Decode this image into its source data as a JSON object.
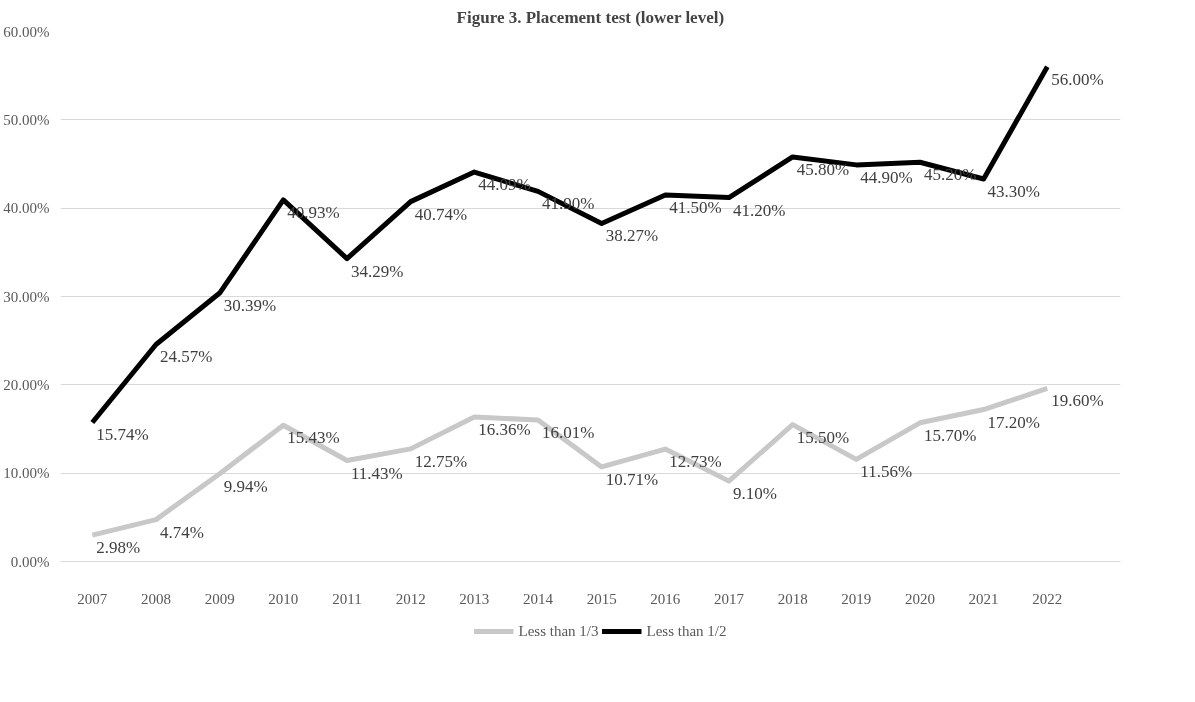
{
  "chart_data": {
    "type": "line",
    "title": "Figure 3. Placement test (lower level)",
    "categories": [
      "2007",
      "2008",
      "2009",
      "2010",
      "2011",
      "2012",
      "2013",
      "2014",
      "2015",
      "2016",
      "2017",
      "2018",
      "2019",
      "2020",
      "2021",
      "2022"
    ],
    "series": [
      {
        "name": "Less than 1/3",
        "color": "#c8c8c8",
        "values": [
          2.98,
          4.74,
          9.94,
          15.43,
          11.43,
          12.75,
          16.36,
          16.01,
          10.71,
          12.73,
          9.1,
          15.5,
          11.56,
          15.7,
          17.2,
          19.6
        ],
        "value_labels": [
          "2.98%",
          "4.74%",
          "9.94%",
          "15.43%",
          "11.43%",
          "12.75%",
          "16.36%",
          "16.01%",
          "10.71%",
          "12.73%",
          "9.10%",
          "15.50%",
          "11.56%",
          "15.70%",
          "17.20%",
          "19.60%"
        ]
      },
      {
        "name": "Less than 1/2",
        "color": "#000000",
        "values": [
          15.74,
          24.57,
          30.39,
          40.93,
          34.29,
          40.74,
          44.09,
          41.9,
          38.27,
          41.5,
          41.2,
          45.8,
          44.9,
          45.2,
          43.3,
          56.0
        ],
        "value_labels": [
          "15.74%",
          "24.57%",
          "30.39%",
          "40.93%",
          "34.29%",
          "40.74%",
          "44.09%",
          "41.90%",
          "38.27%",
          "41.50%",
          "41.20%",
          "45.80%",
          "44.90%",
          "45.20%",
          "43.30%",
          "56.00%"
        ]
      }
    ],
    "ylim": [
      0,
      60
    ],
    "yticks": [
      {
        "value": 0,
        "label": "0.00%"
      },
      {
        "value": 10,
        "label": "10.00%"
      },
      {
        "value": 20,
        "label": "20.00%"
      },
      {
        "value": 30,
        "label": "30.00%"
      },
      {
        "value": 40,
        "label": "40.00%"
      },
      {
        "value": 50,
        "label": "50.00%"
      },
      {
        "value": 60,
        "label": "60.00%"
      }
    ],
    "grid": "y",
    "legend": "bottom",
    "line_style": "solid",
    "marker": "none"
  }
}
